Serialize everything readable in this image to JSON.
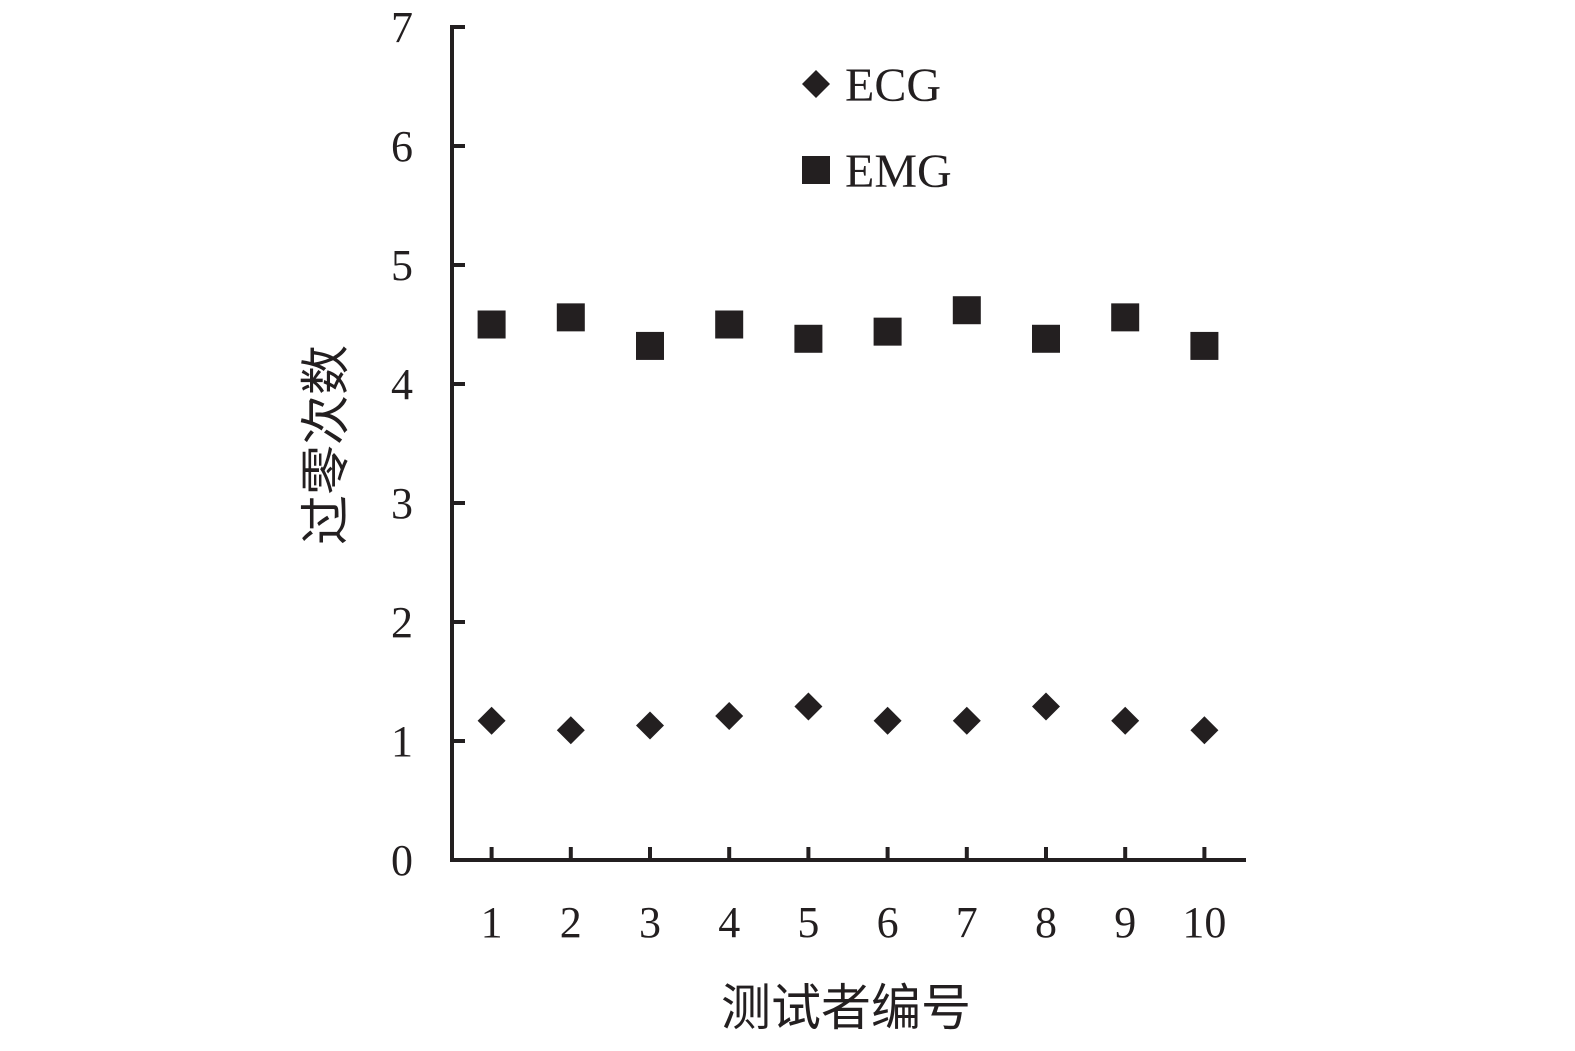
{
  "chart_data": {
    "type": "scatter",
    "title": "",
    "xlabel": "测试者编号",
    "ylabel": "过零次数",
    "x": [
      1,
      2,
      3,
      4,
      5,
      6,
      7,
      8,
      9,
      10
    ],
    "x_ticks": [
      "1",
      "2",
      "3",
      "4",
      "5",
      "6",
      "7",
      "8",
      "9",
      "10"
    ],
    "xlim": [
      0,
      10
    ],
    "ylim": [
      0,
      7
    ],
    "y_ticks": [
      "0",
      "1",
      "2",
      "3",
      "4",
      "5",
      "6",
      "7"
    ],
    "grid": false,
    "legend_position": "top-center",
    "series": [
      {
        "name": "ECG",
        "marker": "diamond",
        "color": "#231f20",
        "values": [
          1.17,
          1.09,
          1.13,
          1.21,
          1.29,
          1.17,
          1.17,
          1.29,
          1.17,
          1.09
        ]
      },
      {
        "name": "EMG",
        "marker": "square",
        "color": "#231f20",
        "values": [
          4.5,
          4.56,
          4.32,
          4.5,
          4.38,
          4.44,
          4.62,
          4.38,
          4.56,
          4.32
        ]
      }
    ]
  }
}
